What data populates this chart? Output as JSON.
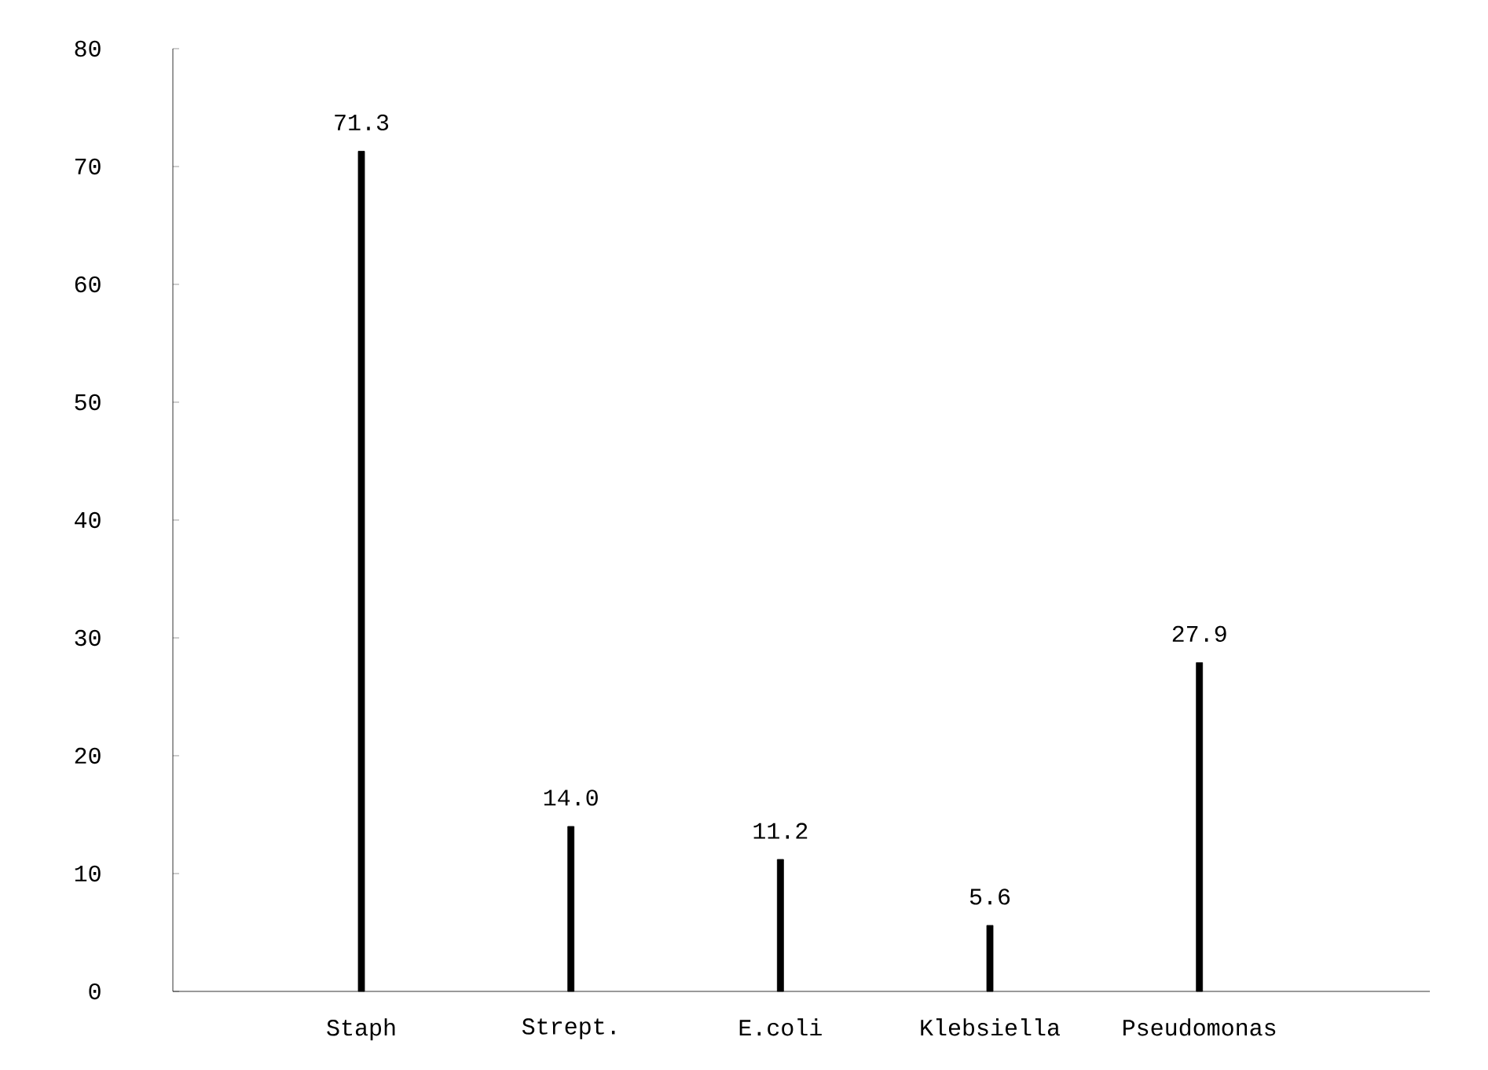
{
  "chart_data": {
    "type": "bar",
    "categories": [
      "Staph",
      "Strept.",
      "E.coli",
      "Klebsiella",
      "Pseudomonas"
    ],
    "values": [
      71.3,
      14.0,
      11.2,
      5.6,
      27.9
    ],
    "value_labels": [
      "71.3",
      "14.0",
      "11.2",
      "5.6",
      "27.9"
    ],
    "color": "#000000",
    "ylim": [
      0,
      80
    ],
    "yticks": [
      0,
      10,
      20,
      30,
      40,
      50,
      60,
      70,
      80
    ]
  }
}
